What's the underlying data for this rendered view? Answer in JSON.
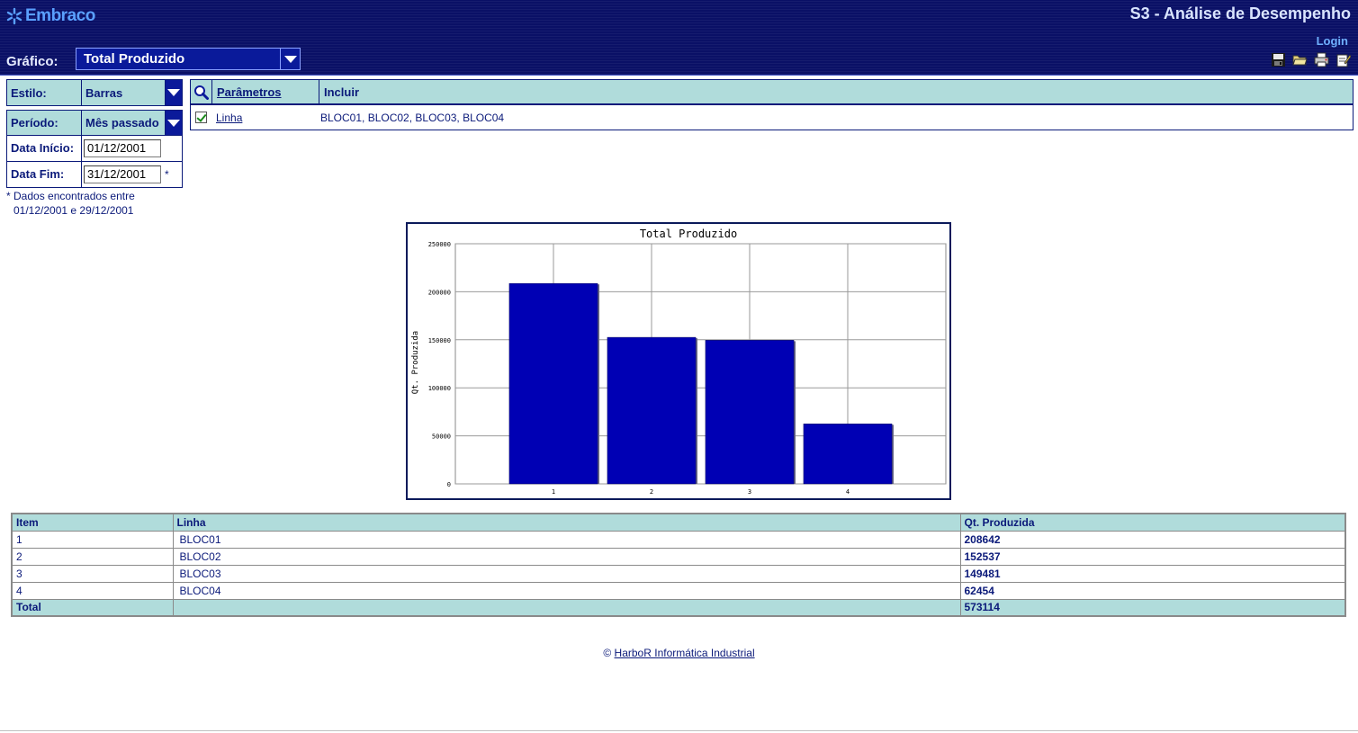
{
  "header": {
    "logo_text": "Embraco",
    "app_title": "S3 - Análise de Desempenho",
    "login_label": "Login",
    "grafico_label": "Gráfico:",
    "grafico_selected": "Total Produzido",
    "toolbar": [
      "save-icon",
      "open-folder-icon",
      "print-icon",
      "edit-icon"
    ]
  },
  "filters": {
    "estilo_label": "Estilo:",
    "estilo_value": "Barras",
    "periodo_label": "Período:",
    "periodo_value": "Mês passado",
    "data_inicio_label": "Data Início:",
    "data_inicio_value": "01/12/2001",
    "data_fim_label": "Data Fim:",
    "data_fim_value": "31/12/2001",
    "data_fim_marker": "*",
    "note_line1": "* Dados encontrados entre",
    "note_line2": "01/12/2001 e 29/12/2001"
  },
  "params": {
    "col1_header": "Parâmetros",
    "col2_header": "Incluir",
    "row_label": "Linha",
    "row_checked": true,
    "row_values": "BLOC01, BLOC02, BLOC03, BLOC04"
  },
  "chart_data": {
    "type": "bar",
    "title": "Total Produzido",
    "ylabel": "Qt. Produzida",
    "xlabel": "",
    "categories": [
      "1",
      "2",
      "3",
      "4"
    ],
    "values": [
      208642,
      152537,
      149481,
      62454
    ],
    "ylim": [
      0,
      250000
    ],
    "yticks": [
      "0",
      "50000",
      "100000",
      "150000",
      "200000",
      "250000"
    ],
    "grid": true,
    "bar_color": "#0000b4"
  },
  "table": {
    "headers": [
      "Item",
      "Linha",
      "Qt. Produzida"
    ],
    "rows": [
      [
        "1",
        "BLOC01",
        "208642"
      ],
      [
        "2",
        "BLOC02",
        "152537"
      ],
      [
        "3",
        "BLOC03",
        "149481"
      ],
      [
        "4",
        "BLOC04",
        "62454"
      ]
    ],
    "total_label": "Total",
    "total_value": "573114"
  },
  "footer": {
    "copyright": "©",
    "link_text": "HarboR Informática Industrial"
  }
}
